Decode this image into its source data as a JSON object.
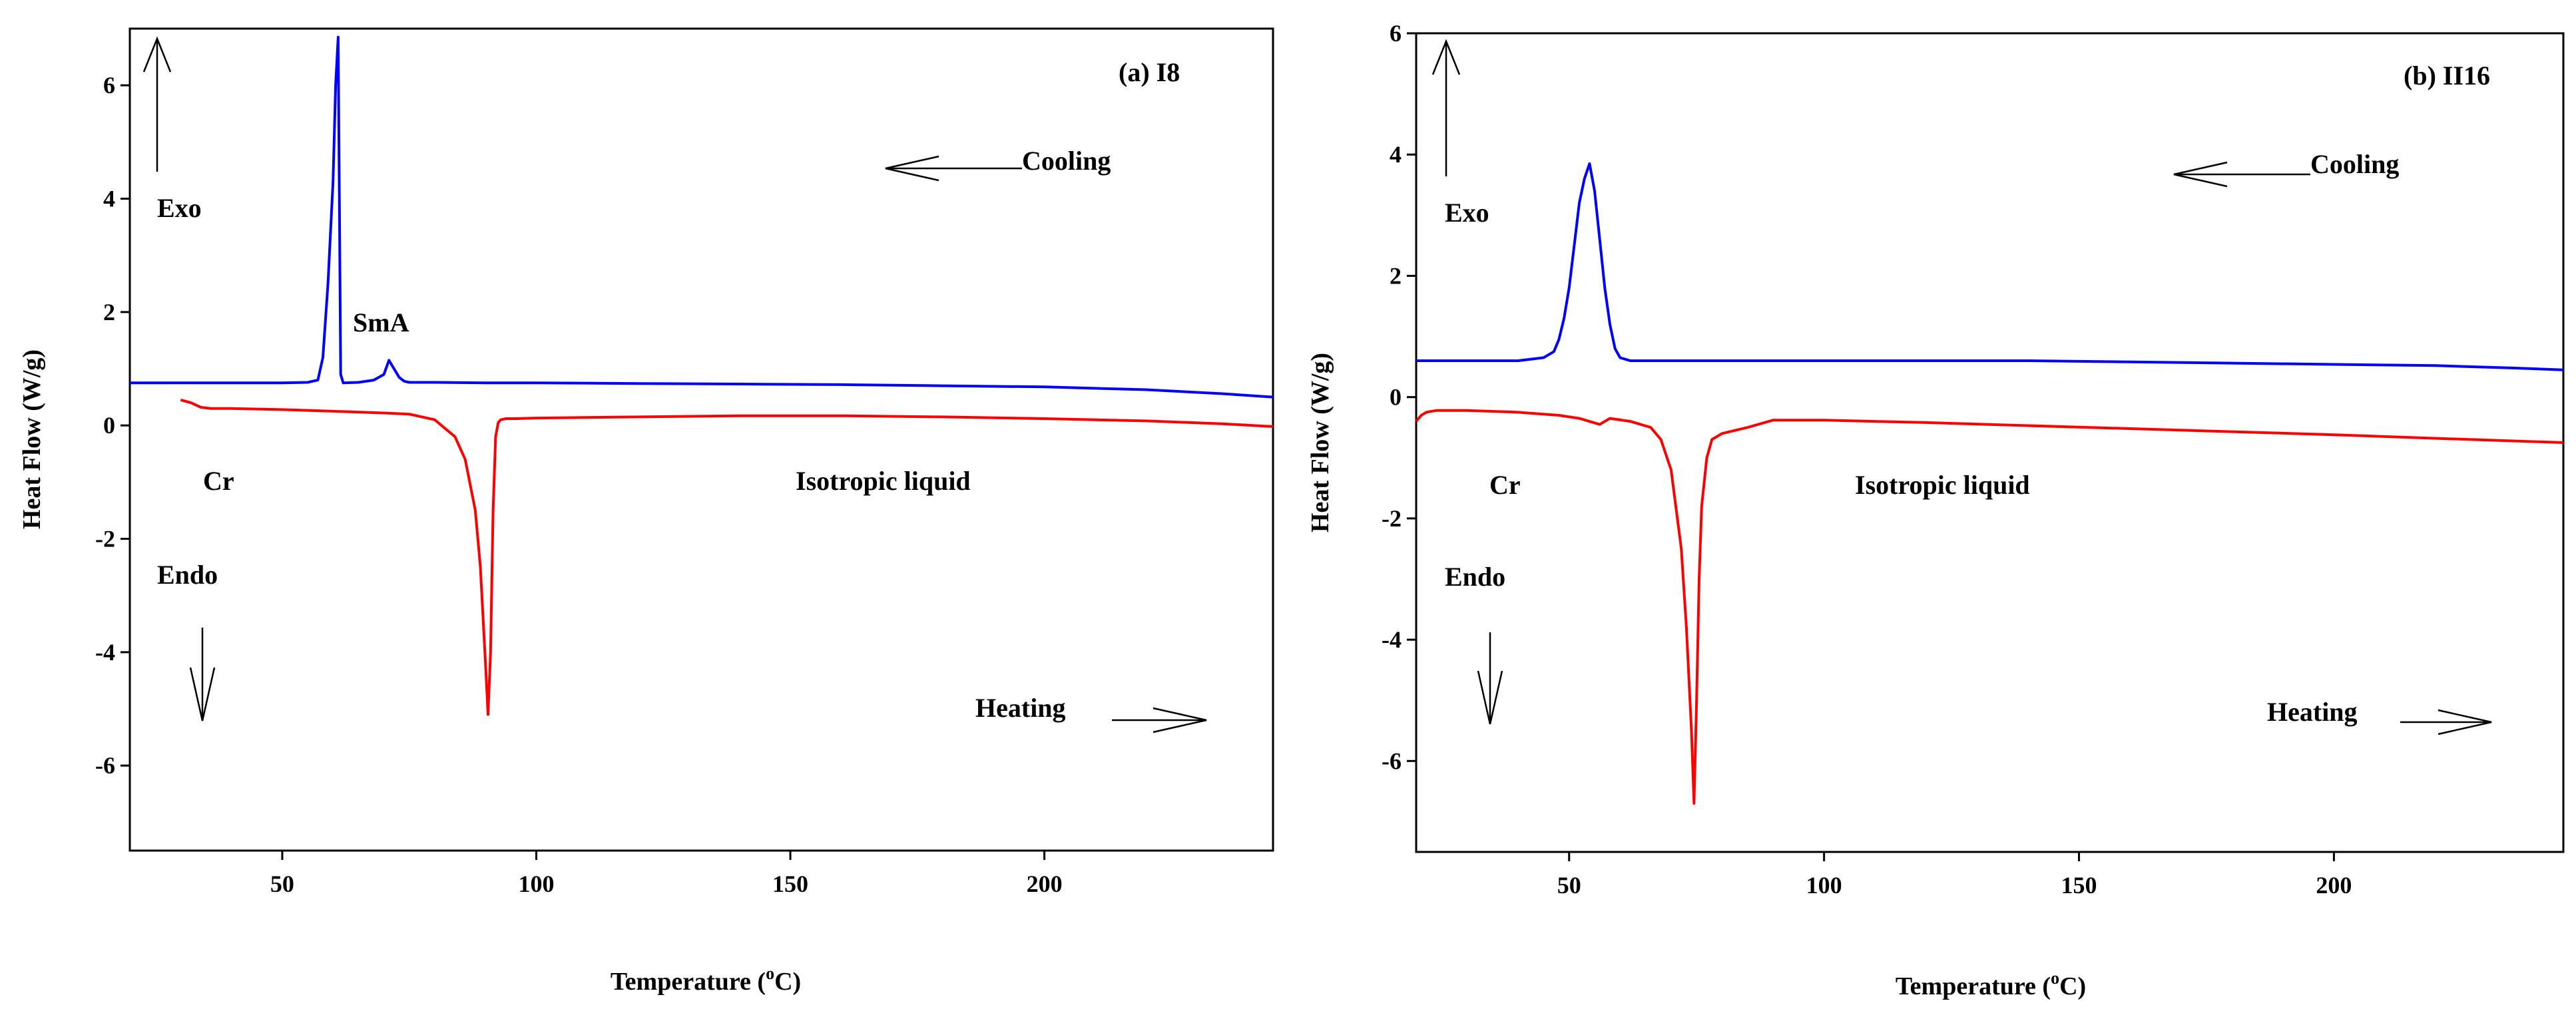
{
  "chart_data": [
    {
      "type": "line",
      "panel_label": "(a) I8",
      "xlabel": "Temperature (",
      "xlabel_sup": "o",
      "xlabel_end": "C)",
      "ylabel": "Heat Flow (W/g)",
      "xlim": [
        20,
        245
      ],
      "ylim": [
        -7.5,
        7
      ],
      "xticks": [
        50,
        100,
        150,
        200
      ],
      "yticks": [
        -6,
        -4,
        -2,
        0,
        2,
        4,
        6
      ],
      "grid": false,
      "series": [
        {
          "name": "Cooling",
          "color": "#0000ff",
          "x": [
            20,
            30,
            40,
            50,
            55,
            57,
            58,
            59,
            60,
            60.5,
            61,
            61.5,
            62,
            65,
            68,
            70,
            71,
            72,
            73,
            74,
            75,
            80,
            90,
            100,
            120,
            140,
            160,
            180,
            200,
            220,
            235,
            245
          ],
          "y": [
            0.75,
            0.75,
            0.75,
            0.75,
            0.76,
            0.8,
            1.2,
            2.5,
            4.3,
            6.0,
            6.85,
            0.9,
            0.75,
            0.76,
            0.8,
            0.9,
            1.15,
            1.0,
            0.85,
            0.78,
            0.76,
            0.76,
            0.75,
            0.75,
            0.74,
            0.73,
            0.72,
            0.7,
            0.68,
            0.63,
            0.56,
            0.5
          ]
        },
        {
          "name": "Heating",
          "color": "#ff0000",
          "x": [
            30,
            32,
            34,
            36,
            40,
            50,
            60,
            70,
            75,
            80,
            84,
            86,
            88,
            89,
            90,
            90.5,
            91,
            91.5,
            92,
            92.5,
            93,
            94,
            96,
            100,
            120,
            140,
            160,
            180,
            200,
            220,
            235,
            245
          ],
          "y": [
            0.45,
            0.4,
            0.32,
            0.3,
            0.3,
            0.28,
            0.25,
            0.22,
            0.2,
            0.1,
            -0.2,
            -0.6,
            -1.5,
            -2.5,
            -4.2,
            -5.1,
            -4.0,
            -1.5,
            -0.2,
            0.05,
            0.1,
            0.12,
            0.12,
            0.13,
            0.15,
            0.17,
            0.17,
            0.15,
            0.12,
            0.08,
            0.03,
            -0.02
          ]
        }
      ],
      "annotations": {
        "exo": "Exo",
        "endo": "Endo",
        "cooling": "Cooling",
        "heating": "Heating",
        "smA": "SmA",
        "cr": "Cr",
        "iso": "Isotropic liquid"
      }
    },
    {
      "type": "line",
      "panel_label": "(b) II16",
      "xlabel": "Temperature (",
      "xlabel_sup": "o",
      "xlabel_end": "C)",
      "ylabel": "Heat Flow (W/g)",
      "xlim": [
        20,
        245
      ],
      "ylim": [
        -7.5,
        6
      ],
      "xticks": [
        50,
        100,
        150,
        200
      ],
      "yticks": [
        -6,
        -4,
        -2,
        0,
        2,
        4,
        6
      ],
      "grid": false,
      "series": [
        {
          "name": "Cooling",
          "color": "#0000ff",
          "x": [
            20,
            30,
            40,
            45,
            47,
            48,
            49,
            50,
            51,
            52,
            53,
            54,
            55,
            56,
            57,
            58,
            59,
            60,
            62,
            65,
            80,
            100,
            120,
            140,
            160,
            180,
            200,
            220,
            235,
            245
          ],
          "y": [
            0.6,
            0.6,
            0.6,
            0.65,
            0.75,
            0.95,
            1.3,
            1.8,
            2.5,
            3.2,
            3.6,
            3.85,
            3.4,
            2.6,
            1.8,
            1.2,
            0.8,
            0.65,
            0.6,
            0.6,
            0.6,
            0.6,
            0.6,
            0.6,
            0.58,
            0.56,
            0.54,
            0.52,
            0.48,
            0.45
          ]
        },
        {
          "name": "Heating",
          "color": "#ff0000",
          "x": [
            20,
            21,
            22,
            24,
            30,
            40,
            48,
            52,
            56,
            58,
            62,
            66,
            68,
            70,
            72,
            73,
            74,
            74.5,
            75,
            75.5,
            76,
            77,
            78,
            80,
            85,
            90,
            100,
            120,
            140,
            160,
            180,
            200,
            220,
            245
          ],
          "y": [
            -0.4,
            -0.3,
            -0.25,
            -0.22,
            -0.22,
            -0.25,
            -0.3,
            -0.35,
            -0.45,
            -0.35,
            -0.4,
            -0.5,
            -0.7,
            -1.2,
            -2.5,
            -3.8,
            -5.5,
            -6.7,
            -5.0,
            -3.0,
            -1.8,
            -1.0,
            -0.7,
            -0.6,
            -0.5,
            -0.38,
            -0.38,
            -0.42,
            -0.47,
            -0.52,
            -0.57,
            -0.62,
            -0.68,
            -0.75
          ]
        }
      ],
      "annotations": {
        "exo": "Exo",
        "endo": "Endo",
        "cooling": "Cooling",
        "heating": "Heating",
        "cr": "Cr",
        "iso": "Isotropic liquid"
      }
    }
  ]
}
